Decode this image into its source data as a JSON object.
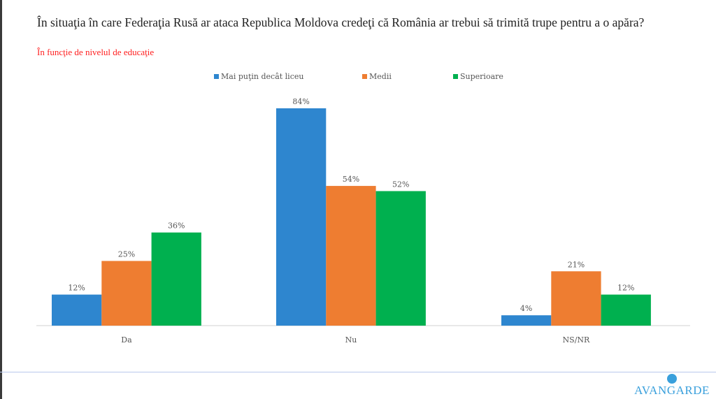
{
  "chart_data": {
    "type": "bar",
    "title": "În situaţia în care Federaţia Rusă ar ataca Republica Moldova credeţi că România ar trebui să trimită trupe pentru a o apăra?",
    "subtitle": "În funcţie de nivelul de educaţie",
    "categories": [
      "Da",
      "Nu",
      "NS/NR"
    ],
    "series": [
      {
        "name": "Mai puţin decât liceu",
        "color": "#2e86cf",
        "values": [
          12,
          84,
          4
        ]
      },
      {
        "name": "Medii",
        "color": "#ee7d31",
        "values": [
          25,
          54,
          21
        ]
      },
      {
        "name": "Superioare",
        "color": "#00b04f",
        "values": [
          36,
          52,
          12
        ]
      }
    ],
    "value_format": "%",
    "ylim": [
      0,
      84
    ],
    "grid": false,
    "legend": "top"
  },
  "logo": {
    "text": "AVANGARDE"
  }
}
